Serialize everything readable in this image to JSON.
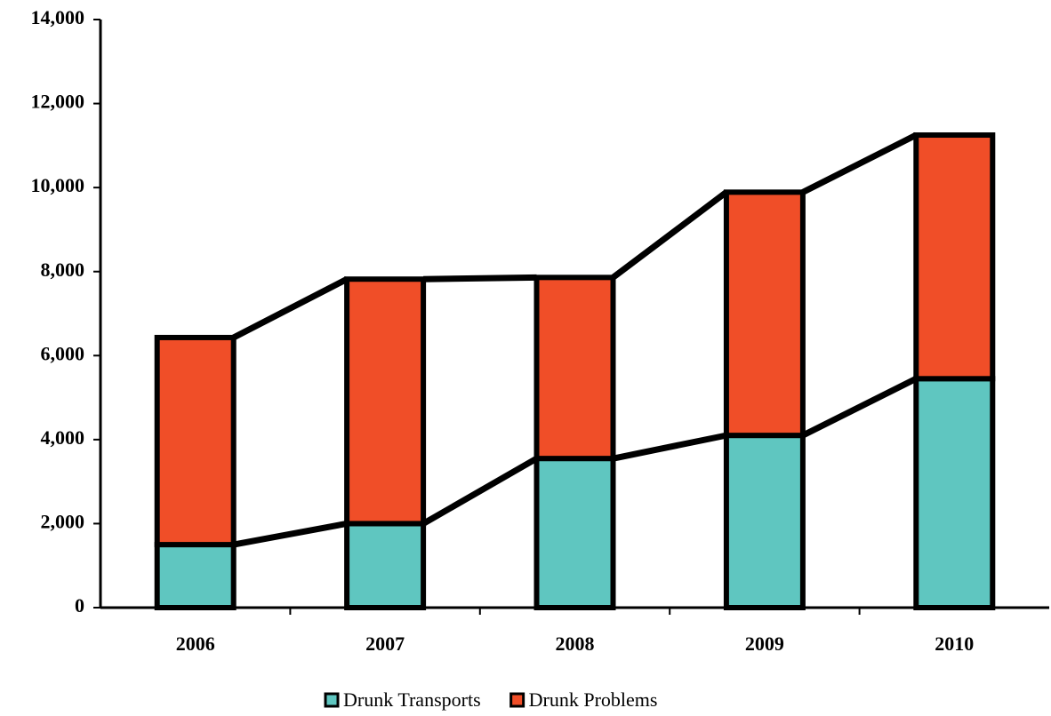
{
  "chart_data": {
    "type": "stacked_bar",
    "categories": [
      "2006",
      "2007",
      "2008",
      "2009",
      "2010"
    ],
    "series": [
      {
        "name": "Drunk Transports",
        "color": "#5fc6c0",
        "values": [
          1500,
          2000,
          3550,
          4100,
          5450
        ]
      },
      {
        "name": "Drunk Problems",
        "color": "#f04e28",
        "values": [
          4930,
          5820,
          4310,
          5790,
          5800
        ]
      }
    ],
    "ylim": [
      0,
      14000
    ],
    "yticks": [
      0,
      {
        "value": 2000,
        "label": "2,000"
      },
      {
        "value": 4000,
        "label": "4,000"
      },
      {
        "value": 6000,
        "label": "6,000"
      },
      {
        "value": 8000,
        "label": "8,000"
      },
      {
        "value": 10000,
        "label": "10,000"
      },
      {
        "value": 12000,
        "label": "12,000"
      },
      {
        "value": 14000,
        "label": "14,000"
      }
    ],
    "series_lines": true,
    "legend": "bottom"
  }
}
